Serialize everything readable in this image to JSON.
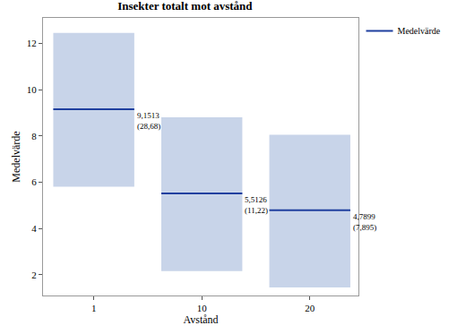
{
  "chart_data": {
    "type": "range",
    "title": "Insekter totalt mot avstånd",
    "x_label": "Avstånd",
    "y_label": "Medelvärde",
    "categories": [
      "1",
      "10",
      "20"
    ],
    "series": [
      {
        "name": "Medelvärde",
        "color": "#1f3f9f",
        "values": [
          9.1513,
          5.5126,
          4.7899
        ],
        "value_labels": [
          "9,1513",
          "5,5126",
          "4,7899"
        ],
        "low": [
          5.8,
          2.15,
          1.45
        ],
        "high": [
          12.45,
          8.8,
          8.05
        ],
        "variance": [
          28.68,
          11.22,
          7.895
        ],
        "variance_labels": [
          "(28,68)",
          "(11,22)",
          "(7,895)"
        ]
      }
    ],
    "ylim": [
      1.1,
      13.1
    ],
    "yticks": [
      2,
      4,
      6,
      8,
      10,
      12
    ],
    "grid": false,
    "legend": "upper right",
    "data_labels": true
  }
}
